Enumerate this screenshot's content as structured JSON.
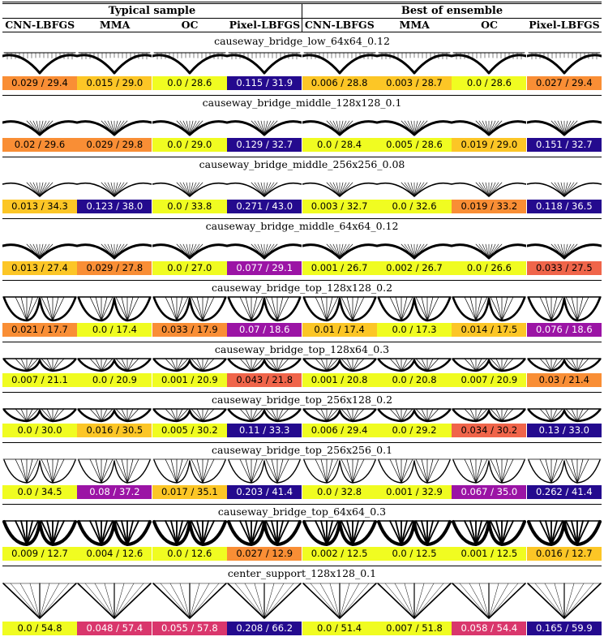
{
  "header": {
    "groups": [
      "Typical sample",
      "Best of ensemble"
    ],
    "columns": [
      "CNN-LBFGS",
      "MMA",
      "OC",
      "Pixel-LBFGS",
      "CNN-LBFGS",
      "MMA",
      "OC",
      "Pixel-LBFGS"
    ]
  },
  "colors": {
    "c0": "#f0fc21",
    "c1": "#fcc626",
    "c2": "#f98e35",
    "c3": "#f0654a",
    "c4": "#d9366c",
    "c5": "#9b14a5",
    "c6": "#5c04a8",
    "c7": "#240a8e"
  },
  "problems": [
    {
      "title": "causeway_bridge_low_64x64_0.12",
      "shape": "low",
      "cells": [
        {
          "label": "0.029 / 29.4",
          "color": "#f98e35"
        },
        {
          "label": "0.015 / 29.0",
          "color": "#fcc626"
        },
        {
          "label": "0.0 / 28.6",
          "color": "#f0fc21"
        },
        {
          "label": "0.115 / 31.9",
          "color": "#240a8e"
        },
        {
          "label": "0.006 / 28.8",
          "color": "#fcc626"
        },
        {
          "label": "0.003 / 28.7",
          "color": "#fcc626"
        },
        {
          "label": "0.0 / 28.6",
          "color": "#f0fc21"
        },
        {
          "label": "0.027 / 29.4",
          "color": "#f98e35"
        }
      ]
    },
    {
      "title": "causeway_bridge_middle_128x128_0.1",
      "shape": "middle",
      "cells": [
        {
          "label": "0.02 / 29.6",
          "color": "#f98e35"
        },
        {
          "label": "0.029 / 29.8",
          "color": "#f98e35"
        },
        {
          "label": "0.0 / 29.0",
          "color": "#f0fc21"
        },
        {
          "label": "0.129 / 32.7",
          "color": "#240a8e"
        },
        {
          "label": "0.0 / 28.4",
          "color": "#f0fc21"
        },
        {
          "label": "0.005 / 28.6",
          "color": "#f0fc21"
        },
        {
          "label": "0.019 / 29.0",
          "color": "#fcc626"
        },
        {
          "label": "0.151 / 32.7",
          "color": "#240a8e"
        }
      ]
    },
    {
      "title": "causeway_bridge_middle_256x256_0.08",
      "shape": "middle-thin",
      "cells": [
        {
          "label": "0.013 / 34.3",
          "color": "#fcc626"
        },
        {
          "label": "0.123 / 38.0",
          "color": "#240a8e"
        },
        {
          "label": "0.0 / 33.8",
          "color": "#f0fc21"
        },
        {
          "label": "0.271 / 43.0",
          "color": "#240a8e"
        },
        {
          "label": "0.003 / 32.7",
          "color": "#f0fc21"
        },
        {
          "label": "0.0 / 32.6",
          "color": "#f0fc21"
        },
        {
          "label": "0.019 / 33.2",
          "color": "#f98e35"
        },
        {
          "label": "0.118 / 36.5",
          "color": "#240a8e"
        }
      ]
    },
    {
      "title": "causeway_bridge_middle_64x64_0.12",
      "shape": "middle",
      "cells": [
        {
          "label": "0.013 / 27.4",
          "color": "#fcc626"
        },
        {
          "label": "0.029 / 27.8",
          "color": "#f98e35"
        },
        {
          "label": "0.0 / 27.0",
          "color": "#f0fc21"
        },
        {
          "label": "0.077 / 29.1",
          "color": "#9b14a5"
        },
        {
          "label": "0.001 / 26.7",
          "color": "#f0fc21"
        },
        {
          "label": "0.002 / 26.7",
          "color": "#f0fc21"
        },
        {
          "label": "0.0 / 26.6",
          "color": "#f0fc21"
        },
        {
          "label": "0.033 / 27.5",
          "color": "#f0654a"
        }
      ]
    },
    {
      "title": "causeway_bridge_top_128x128_0.2",
      "shape": "top",
      "cells": [
        {
          "label": "0.021 / 17.7",
          "color": "#f98e35"
        },
        {
          "label": "0.0 / 17.4",
          "color": "#f0fc21"
        },
        {
          "label": "0.033 / 17.9",
          "color": "#f98e35"
        },
        {
          "label": "0.07 / 18.6",
          "color": "#9b14a5"
        },
        {
          "label": "0.01 / 17.4",
          "color": "#fcc626"
        },
        {
          "label": "0.0 / 17.3",
          "color": "#f0fc21"
        },
        {
          "label": "0.014 / 17.5",
          "color": "#fcc626"
        },
        {
          "label": "0.076 / 18.6",
          "color": "#9b14a5"
        }
      ]
    },
    {
      "title": "causeway_bridge_top_128x64_0.3",
      "shape": "top-flat",
      "cells": [
        {
          "label": "0.007 / 21.1",
          "color": "#f0fc21"
        },
        {
          "label": "0.0 / 20.9",
          "color": "#f0fc21"
        },
        {
          "label": "0.001 / 20.9",
          "color": "#f0fc21"
        },
        {
          "label": "0.043 / 21.8",
          "color": "#f0654a"
        },
        {
          "label": "0.001 / 20.8",
          "color": "#f0fc21"
        },
        {
          "label": "0.0 / 20.8",
          "color": "#f0fc21"
        },
        {
          "label": "0.007 / 20.9",
          "color": "#f0fc21"
        },
        {
          "label": "0.03 / 21.4",
          "color": "#f98e35"
        }
      ]
    },
    {
      "title": "causeway_bridge_top_256x128_0.2",
      "shape": "top-flat",
      "cells": [
        {
          "label": "0.0 / 30.0",
          "color": "#f0fc21"
        },
        {
          "label": "0.016 / 30.5",
          "color": "#fcc626"
        },
        {
          "label": "0.005 / 30.2",
          "color": "#f0fc21"
        },
        {
          "label": "0.11 / 33.3",
          "color": "#240a8e"
        },
        {
          "label": "0.006 / 29.4",
          "color": "#f0fc21"
        },
        {
          "label": "0.0 / 29.2",
          "color": "#f0fc21"
        },
        {
          "label": "0.034 / 30.2",
          "color": "#f0654a"
        },
        {
          "label": "0.13 / 33.0",
          "color": "#240a8e"
        }
      ]
    },
    {
      "title": "causeway_bridge_top_256x256_0.1",
      "shape": "top-thin",
      "cells": [
        {
          "label": "0.0 / 34.5",
          "color": "#f0fc21"
        },
        {
          "label": "0.08 / 37.2",
          "color": "#9b14a5"
        },
        {
          "label": "0.017 / 35.1",
          "color": "#fcc626"
        },
        {
          "label": "0.203 / 41.4",
          "color": "#240a8e"
        },
        {
          "label": "0.0 / 32.8",
          "color": "#f0fc21"
        },
        {
          "label": "0.001 / 32.9",
          "color": "#f0fc21"
        },
        {
          "label": "0.067 / 35.0",
          "color": "#9b14a5"
        },
        {
          "label": "0.262 / 41.4",
          "color": "#240a8e"
        }
      ]
    },
    {
      "title": "causeway_bridge_top_64x64_0.3",
      "shape": "top-thick",
      "cells": [
        {
          "label": "0.009 / 12.7",
          "color": "#f0fc21"
        },
        {
          "label": "0.004 / 12.6",
          "color": "#f0fc21"
        },
        {
          "label": "0.0 / 12.6",
          "color": "#f0fc21"
        },
        {
          "label": "0.027 / 12.9",
          "color": "#f98e35"
        },
        {
          "label": "0.002 / 12.5",
          "color": "#f0fc21"
        },
        {
          "label": "0.0 / 12.5",
          "color": "#f0fc21"
        },
        {
          "label": "0.001 / 12.5",
          "color": "#f0fc21"
        },
        {
          "label": "0.016 / 12.7",
          "color": "#fcc626"
        }
      ]
    },
    {
      "title": "center_support_128x128_0.1",
      "shape": "center",
      "cells": [
        {
          "label": "0.0 / 54.8",
          "color": "#f0fc21"
        },
        {
          "label": "0.048 / 57.4",
          "color": "#d9366c"
        },
        {
          "label": "0.055 / 57.8",
          "color": "#d9366c"
        },
        {
          "label": "0.208 / 66.2",
          "color": "#240a8e"
        },
        {
          "label": "0.0 / 51.4",
          "color": "#f0fc21"
        },
        {
          "label": "0.007 / 51.8",
          "color": "#f0fc21"
        },
        {
          "label": "0.058 / 54.4",
          "color": "#d9366c"
        },
        {
          "label": "0.165 / 59.9",
          "color": "#240a8e"
        }
      ]
    }
  ]
}
